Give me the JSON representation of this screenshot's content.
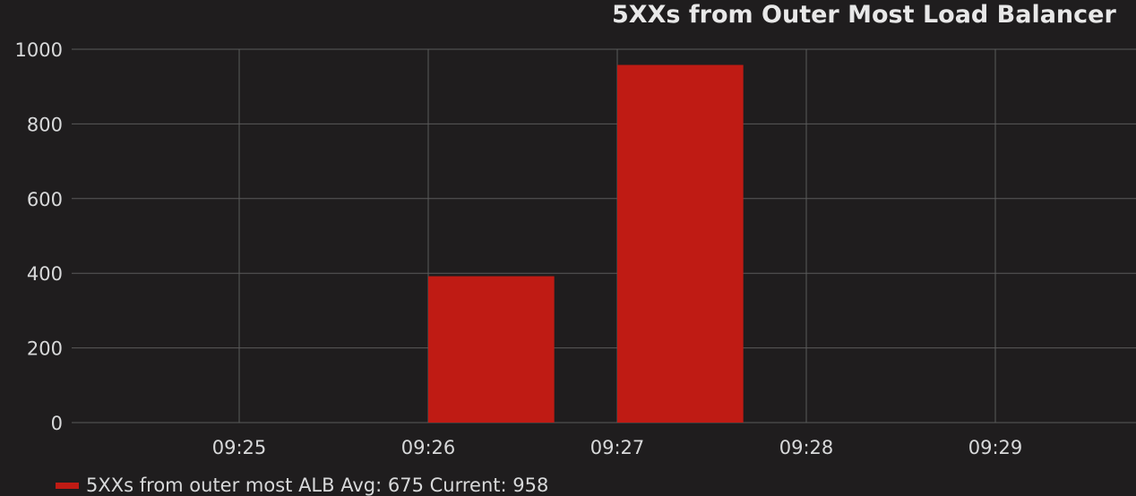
{
  "chart_data": {
    "type": "bar",
    "title": "5XXs from Outer Most Load Balancer",
    "xlabel": "",
    "ylabel": "",
    "x_ticks": [
      "09:25",
      "09:26",
      "09:27",
      "09:28",
      "09:29"
    ],
    "y_ticks": [
      0,
      200,
      400,
      600,
      800,
      1000
    ],
    "ylim": [
      0,
      1000
    ],
    "grid": true,
    "bars": [
      {
        "start": "09:26",
        "end": "09:26:40",
        "value": 392
      },
      {
        "start": "09:27",
        "end": "09:27:40",
        "value": 958
      }
    ],
    "series": [
      {
        "name": "5XXs from outer most ALB",
        "color": "#bf1b14"
      }
    ],
    "legend": {
      "placement": "bottom-left",
      "text": "5XXs from outer most ALB  Avg: 675  Current: 958"
    }
  },
  "colors": {
    "background": "#1f1d1e",
    "grid": "#5a5a5a",
    "bar": "#bf1b14",
    "text": "#d8d9da"
  }
}
